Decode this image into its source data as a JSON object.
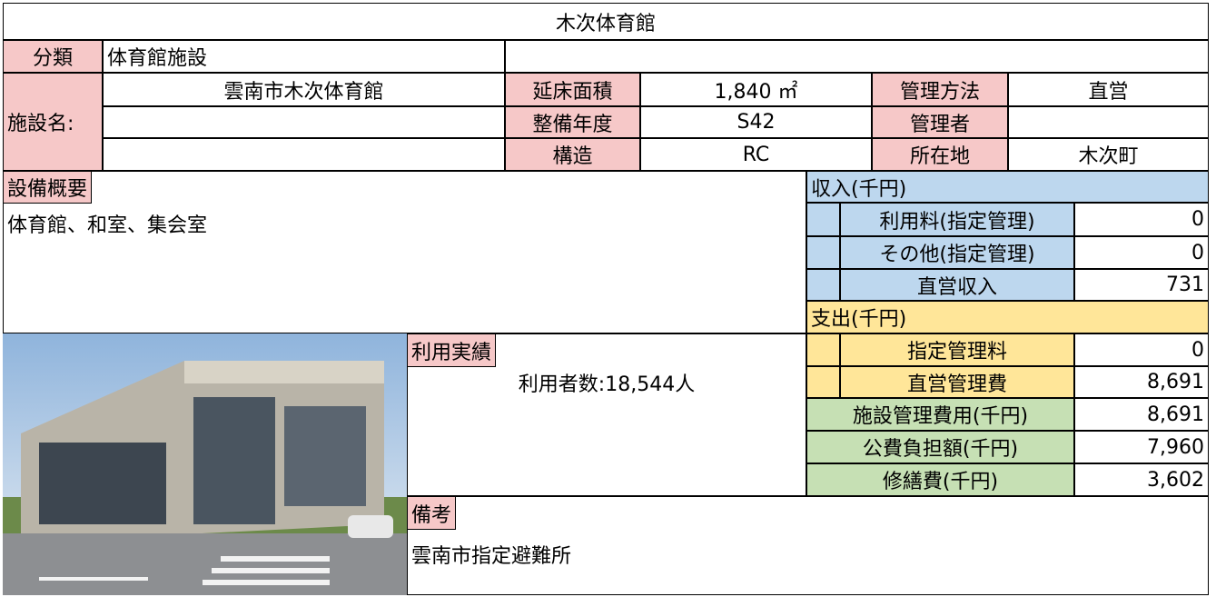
{
  "title": "木次体育館",
  "classification": {
    "label": "分類",
    "value": "体育館施設"
  },
  "facility": {
    "label": "施設名:",
    "name": "雲南市木次体育館"
  },
  "specs": [
    {
      "label": "延床面積",
      "value": "1,840 ㎡"
    },
    {
      "label": "整備年度",
      "value": "S42"
    },
    {
      "label": "構造",
      "value": "RC"
    }
  ],
  "management": [
    {
      "label": "管理方法",
      "value": "直営"
    },
    {
      "label": "管理者"
    },
    {
      "label": "所在地",
      "value": "木次町"
    }
  ],
  "equipment": {
    "label": "設備概要",
    "text": "体育館、和室、集会室"
  },
  "income": {
    "title": "収入(千円)",
    "rows": [
      {
        "label": "利用料(指定管理)",
        "value": "0"
      },
      {
        "label": "その他(指定管理)",
        "value": "0"
      },
      {
        "label": "直営収入",
        "value": "731"
      }
    ]
  },
  "expense": {
    "title": "支出(千円)",
    "rows": [
      {
        "label": "指定管理料",
        "value": "0"
      },
      {
        "label": "直営管理費",
        "value": "8,691"
      }
    ]
  },
  "totals": [
    {
      "label": "施設管理費用(千円)",
      "value": "8,691"
    },
    {
      "label": "公費負担額(千円)",
      "value": "7,960"
    },
    {
      "label": "修繕費(千円)",
      "value": "3,602"
    }
  ],
  "usage": {
    "label": "利用実績",
    "text": "利用者数:18,544人"
  },
  "remarks": {
    "label": "備考",
    "text": "雲南市指定避難所"
  }
}
